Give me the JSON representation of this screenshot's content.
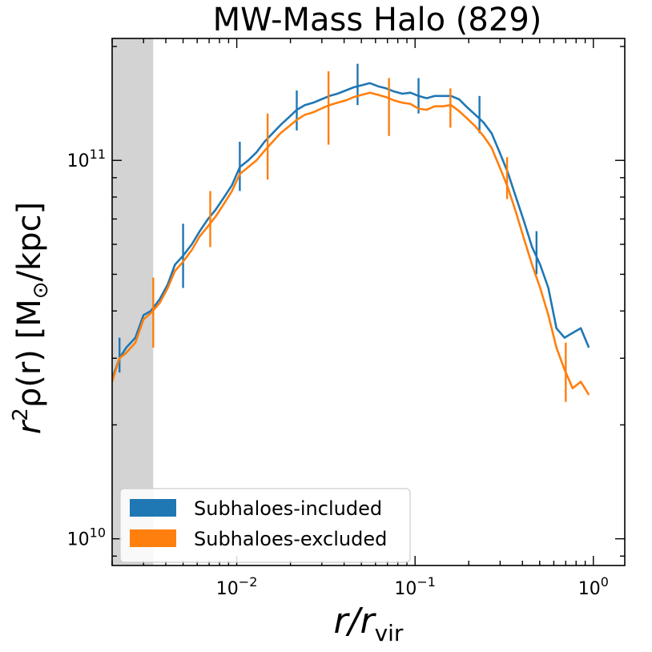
{
  "chart_data": {
    "type": "line",
    "title": "MW-Mass Halo (829)",
    "xscale": "log",
    "yscale": "log",
    "xlim": [
      0.002,
      1.5
    ],
    "ylim": [
      8500000000.0,
      210000000000.0
    ],
    "shaded_region": {
      "x_from": 0.002,
      "x_to": 0.0034
    },
    "x_ticks": [
      {
        "value": 0.01,
        "base": "10",
        "exp": "−2"
      },
      {
        "value": 0.1,
        "base": "10",
        "exp": "−1"
      },
      {
        "value": 1,
        "base": "10",
        "exp": "0"
      }
    ],
    "y_ticks": [
      {
        "value": 10000000000.0,
        "base": "10",
        "exp": "10"
      },
      {
        "value": 100000000000.0,
        "base": "10",
        "exp": "11"
      }
    ],
    "xlabel": {
      "main": "r/r",
      "sub": "vir"
    },
    "ylabel": {
      "pre": "r",
      "sup": "2",
      "mid": "ρ(r) [M",
      "sub": "⊙",
      "post": "/kpc]"
    },
    "legend": {
      "position": "lower-left"
    },
    "series": [
      {
        "name": "Subhaloes-included",
        "color": "#1f77b4",
        "x": [
          0.002,
          0.0022,
          0.0024,
          0.0027,
          0.003,
          0.0033,
          0.0037,
          0.0041,
          0.0045,
          0.005,
          0.0056,
          0.0062,
          0.0069,
          0.0076,
          0.0085,
          0.0094,
          0.0104,
          0.0116,
          0.0129,
          0.0143,
          0.0159,
          0.0176,
          0.0196,
          0.0217,
          0.0241,
          0.0268,
          0.0298,
          0.0331,
          0.0367,
          0.0408,
          0.0453,
          0.0503,
          0.0558,
          0.062,
          0.0688,
          0.0764,
          0.0849,
          0.0942,
          0.1046,
          0.1162,
          0.129,
          0.1433,
          0.1591,
          0.1766,
          0.1961,
          0.2178,
          0.2418,
          0.2685,
          0.2981,
          0.331,
          0.3676,
          0.4082,
          0.4532,
          0.5033,
          0.5589,
          0.6206,
          0.6891,
          0.7652,
          0.8497,
          0.9435
        ],
        "y": [
          26500000000.0,
          30000000000.0,
          32000000000.0,
          34000000000.0,
          39000000000.0,
          40000000000.0,
          43000000000.0,
          47000000000.0,
          53000000000.0,
          56000000000.0,
          60000000000.0,
          65000000000.0,
          70000000000.0,
          74000000000.0,
          80000000000.0,
          86000000000.0,
          96000000000.0,
          100000000000.0,
          105000000000.0,
          112000000000.0,
          118000000000.0,
          124000000000.0,
          130000000000.0,
          136000000000.0,
          140000000000.0,
          142000000000.0,
          145000000000.0,
          148000000000.0,
          150000000000.0,
          153000000000.0,
          156000000000.0,
          158000000000.0,
          160000000000.0,
          157000000000.0,
          155000000000.0,
          152000000000.0,
          150000000000.0,
          151000000000.0,
          148000000000.0,
          146000000000.0,
          148000000000.0,
          148000000000.0,
          148000000000.0,
          145000000000.0,
          138000000000.0,
          132000000000.0,
          126000000000.0,
          118000000000.0,
          105000000000.0,
          93000000000.0,
          80000000000.0,
          69000000000.0,
          59000000000.0,
          53000000000.0,
          46000000000.0,
          36000000000.0,
          34000000000.0,
          35000000000.0,
          36000000000.0,
          32000000000.0
        ],
        "errorbars": [
          {
            "x": 0.0022,
            "low": 27500000000.0,
            "high": 34000000000.0
          },
          {
            "x": 0.005,
            "low": 46000000000.0,
            "high": 68000000000.0
          },
          {
            "x": 0.0104,
            "low": 83000000000.0,
            "high": 112000000000.0
          },
          {
            "x": 0.0217,
            "low": 120000000000.0,
            "high": 153000000000.0
          },
          {
            "x": 0.0476,
            "low": 140000000000.0,
            "high": 180000000000.0
          },
          {
            "x": 0.1046,
            "low": 133000000000.0,
            "high": 165000000000.0
          },
          {
            "x": 0.2298,
            "low": 118000000000.0,
            "high": 148000000000.0
          },
          {
            "x": 0.4799,
            "low": 50000000000.0,
            "high": 65000000000.0
          }
        ]
      },
      {
        "name": "Subhaloes-excluded",
        "color": "#ff7f0e",
        "x": [
          0.002,
          0.0022,
          0.0024,
          0.0027,
          0.003,
          0.0033,
          0.0037,
          0.0041,
          0.0045,
          0.005,
          0.0056,
          0.0062,
          0.0069,
          0.0076,
          0.0085,
          0.0094,
          0.0104,
          0.0116,
          0.0129,
          0.0143,
          0.0159,
          0.0176,
          0.0196,
          0.0217,
          0.0241,
          0.0268,
          0.0298,
          0.0331,
          0.0367,
          0.0408,
          0.0453,
          0.0503,
          0.0558,
          0.062,
          0.0688,
          0.0764,
          0.0849,
          0.0942,
          0.1046,
          0.1162,
          0.129,
          0.1433,
          0.1591,
          0.1766,
          0.1961,
          0.2178,
          0.2418,
          0.2685,
          0.2981,
          0.331,
          0.3676,
          0.4082,
          0.4532,
          0.5033,
          0.5589,
          0.6206,
          0.6891,
          0.7652,
          0.8497,
          0.9435
        ],
        "y": [
          26000000000.0,
          30000000000.0,
          31000000000.0,
          33000000000.0,
          38000000000.0,
          39500000000.0,
          42000000000.0,
          46000000000.0,
          51000000000.0,
          54000000000.0,
          58000000000.0,
          63000000000.0,
          67000000000.0,
          71000000000.0,
          77000000000.0,
          83000000000.0,
          92000000000.0,
          96000000000.0,
          100000000000.0,
          106000000000.0,
          112000000000.0,
          118000000000.0,
          123000000000.0,
          128000000000.0,
          132000000000.0,
          134000000000.0,
          137000000000.0,
          140000000000.0,
          142000000000.0,
          144000000000.0,
          147000000000.0,
          149000000000.0,
          151000000000.0,
          149000000000.0,
          147000000000.0,
          144000000000.0,
          142000000000.0,
          141000000000.0,
          137000000000.0,
          136000000000.0,
          139000000000.0,
          139000000000.0,
          140000000000.0,
          135000000000.0,
          129000000000.0,
          123000000000.0,
          116000000000.0,
          108000000000.0,
          96000000000.0,
          85000000000.0,
          73000000000.0,
          62000000000.0,
          53000000000.0,
          46000000000.0,
          39000000000.0,
          32000000000.0,
          28000000000.0,
          25000000000.0,
          26000000000.0,
          24000000000.0
        ],
        "errorbars": [
          {
            "x": 0.0034,
            "low": 32000000000.0,
            "high": 49000000000.0
          },
          {
            "x": 0.0071,
            "low": 59000000000.0,
            "high": 83000000000.0
          },
          {
            "x": 0.0149,
            "low": 89000000000.0,
            "high": 133000000000.0
          },
          {
            "x": 0.0327,
            "low": 110000000000.0,
            "high": 172000000000.0
          },
          {
            "x": 0.0714,
            "low": 116000000000.0,
            "high": 165000000000.0
          },
          {
            "x": 0.1578,
            "low": 122000000000.0,
            "high": 155000000000.0
          },
          {
            "x": 0.3281,
            "low": 79000000000.0,
            "high": 102000000000.0
          },
          {
            "x": 0.7,
            "low": 23000000000.0,
            "high": 33000000000.0
          }
        ]
      }
    ]
  }
}
